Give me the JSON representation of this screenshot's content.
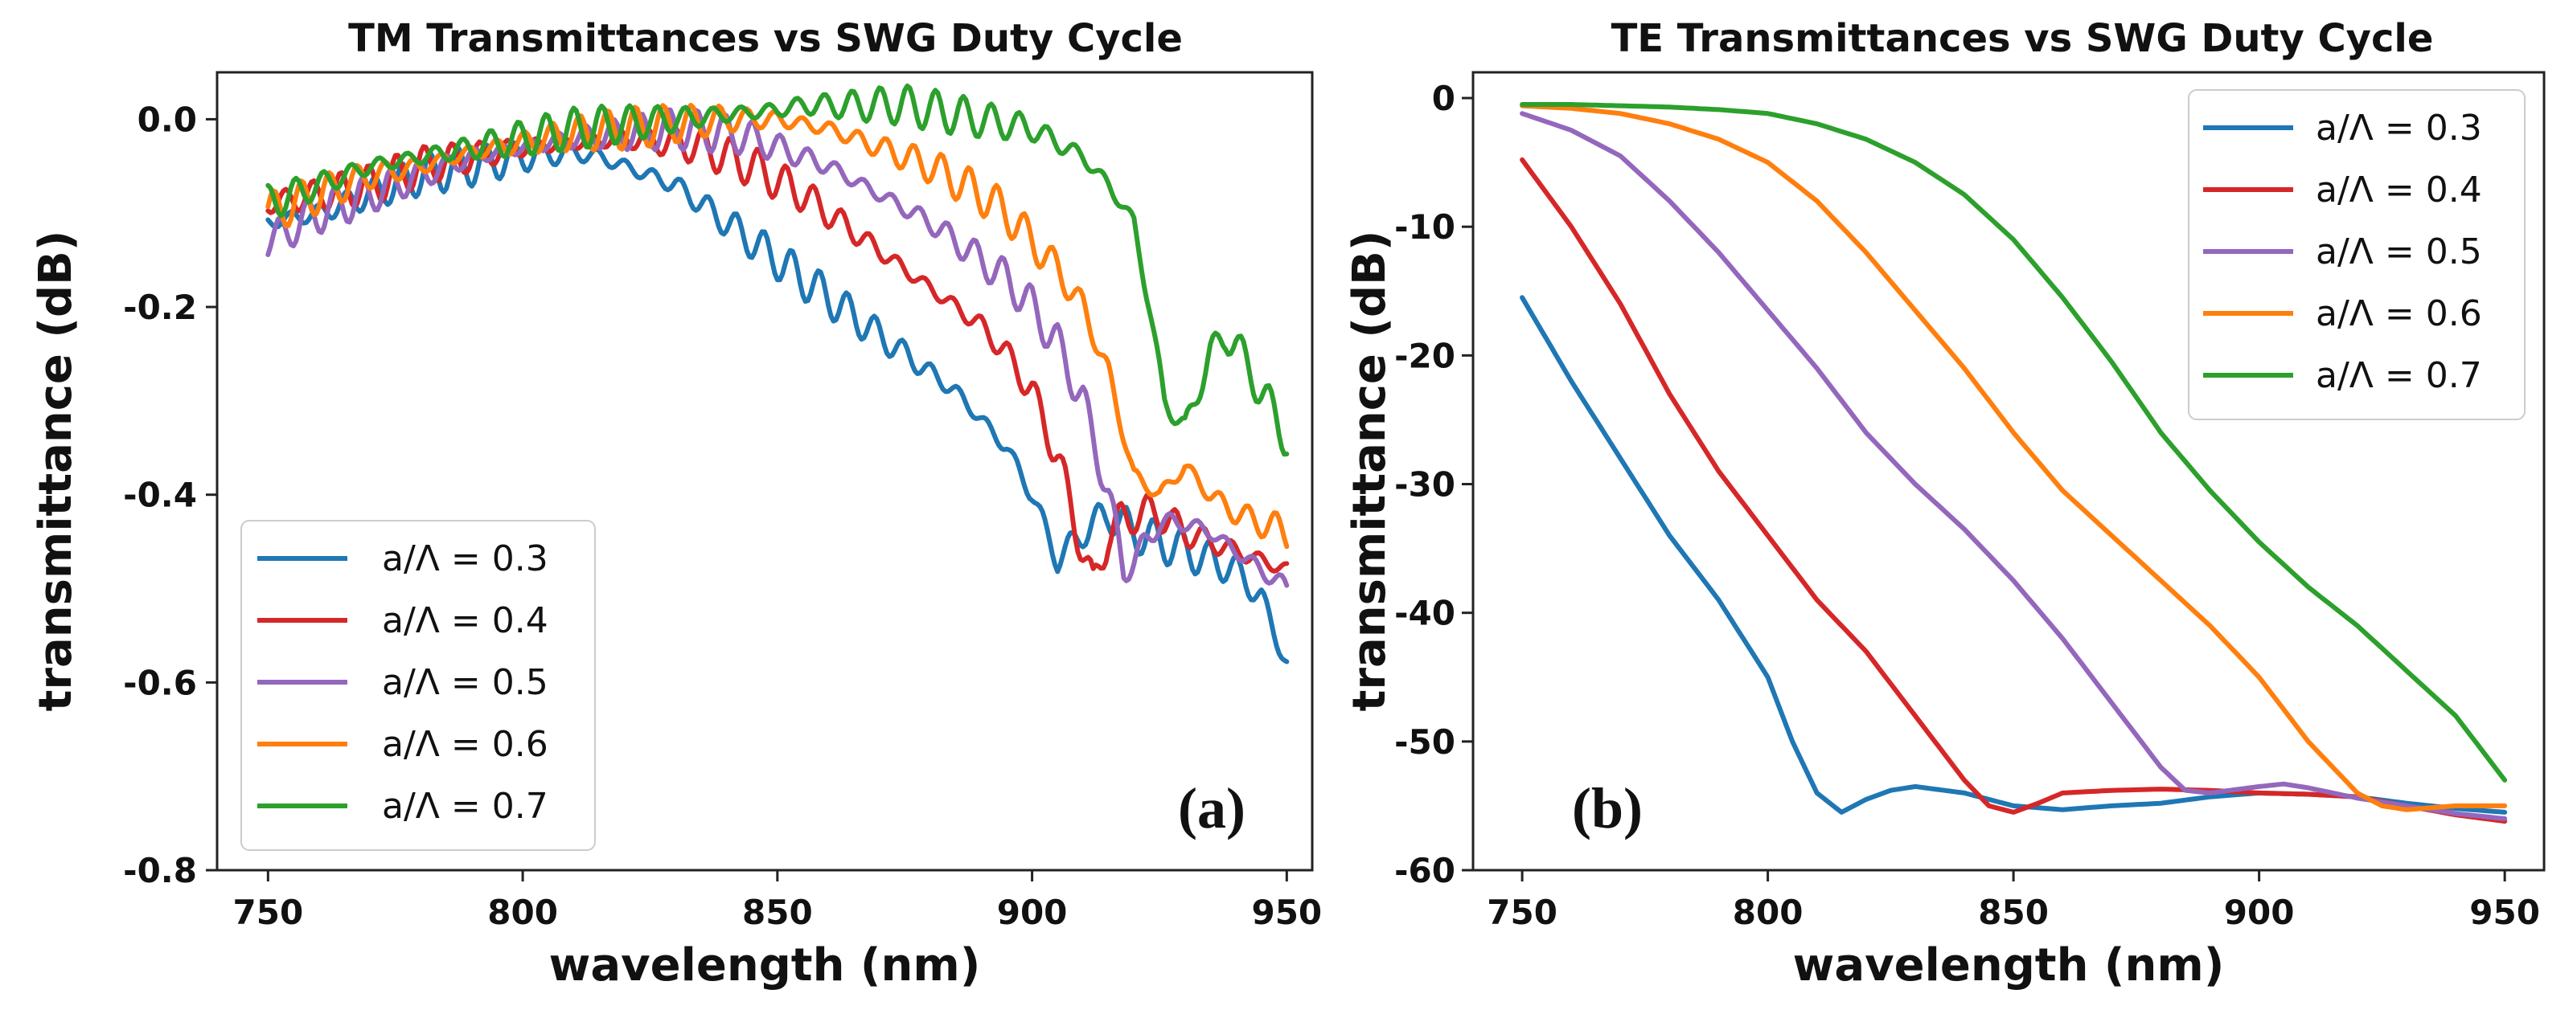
{
  "chart_data": [
    {
      "type": "line",
      "title": "TM Transmittances vs SWG Duty Cycle",
      "xlabel": "wavelength (nm)",
      "ylabel": "transmittance (dB)",
      "xlim": [
        740,
        955
      ],
      "ylim": [
        -0.8,
        0.05
      ],
      "xticks": [
        750,
        800,
        850,
        900,
        950
      ],
      "yticks": [
        0.0,
        -0.2,
        -0.4,
        -0.6,
        -0.8
      ],
      "xtick_labels": [
        "750",
        "800",
        "850",
        "900",
        "950"
      ],
      "ytick_labels": [
        "0.0",
        "-0.2",
        "-0.4",
        "-0.6",
        "-0.8"
      ],
      "legend_position": "lower-left",
      "panel_label": "(a)",
      "ripple": 0.022,
      "series": [
        {
          "name": "a/Λ = 0.3",
          "color": "#1f77b4",
          "x": [
            750,
            760,
            770,
            780,
            790,
            800,
            810,
            815,
            820,
            825,
            830,
            835,
            840,
            845,
            850,
            855,
            860,
            865,
            870,
            875,
            880,
            885,
            890,
            895,
            900,
            905,
            910,
            915,
            920,
            925,
            930,
            935,
            940,
            945,
            950
          ],
          "y": [
            -0.11,
            -0.1,
            -0.08,
            -0.06,
            -0.05,
            -0.04,
            -0.035,
            -0.04,
            -0.05,
            -0.06,
            -0.07,
            -0.09,
            -0.11,
            -0.13,
            -0.15,
            -0.17,
            -0.19,
            -0.21,
            -0.23,
            -0.25,
            -0.27,
            -0.29,
            -0.32,
            -0.35,
            -0.4,
            -0.47,
            -0.44,
            -0.42,
            -0.44,
            -0.45,
            -0.46,
            -0.47,
            -0.48,
            -0.51,
            -0.58
          ]
        },
        {
          "name": "a/Λ = 0.4",
          "color": "#d62728",
          "x": [
            750,
            760,
            770,
            780,
            790,
            800,
            810,
            820,
            830,
            835,
            840,
            845,
            850,
            855,
            860,
            865,
            870,
            875,
            880,
            885,
            890,
            895,
            900,
            905,
            910,
            912,
            915,
            920,
            925,
            930,
            935,
            940,
            945,
            950
          ],
          "y": [
            -0.09,
            -0.08,
            -0.07,
            -0.05,
            -0.04,
            -0.03,
            -0.025,
            -0.02,
            -0.025,
            -0.03,
            -0.04,
            -0.05,
            -0.065,
            -0.08,
            -0.1,
            -0.12,
            -0.14,
            -0.16,
            -0.18,
            -0.2,
            -0.22,
            -0.25,
            -0.29,
            -0.36,
            -0.46,
            -0.5,
            -0.44,
            -0.42,
            -0.42,
            -0.44,
            -0.45,
            -0.46,
            -0.47,
            -0.48
          ]
        },
        {
          "name": "a/Λ = 0.5",
          "color": "#9467bd",
          "x": [
            750,
            760,
            770,
            780,
            790,
            800,
            810,
            820,
            830,
            840,
            845,
            850,
            855,
            860,
            865,
            870,
            875,
            880,
            885,
            890,
            895,
            900,
            905,
            910,
            915,
            918,
            920,
            925,
            930,
            935,
            940,
            945,
            950
          ],
          "y": [
            -0.13,
            -0.1,
            -0.08,
            -0.06,
            -0.04,
            -0.03,
            -0.02,
            -0.015,
            -0.01,
            -0.015,
            -0.02,
            -0.03,
            -0.04,
            -0.05,
            -0.065,
            -0.08,
            -0.095,
            -0.11,
            -0.13,
            -0.15,
            -0.17,
            -0.2,
            -0.24,
            -0.3,
            -0.4,
            -0.48,
            -0.47,
            -0.43,
            -0.43,
            -0.44,
            -0.46,
            -0.48,
            -0.5
          ]
        },
        {
          "name": "a/Λ = 0.6",
          "color": "#ff7f0e",
          "x": [
            750,
            760,
            770,
            780,
            790,
            800,
            810,
            820,
            830,
            840,
            850,
            855,
            860,
            865,
            870,
            875,
            880,
            885,
            890,
            895,
            900,
            905,
            910,
            915,
            920,
            925,
            930,
            935,
            940,
            945,
            950
          ],
          "y": [
            -0.1,
            -0.08,
            -0.06,
            -0.05,
            -0.035,
            -0.025,
            -0.015,
            -0.01,
            -0.005,
            0.0,
            0.0,
            -0.005,
            -0.01,
            -0.02,
            -0.03,
            -0.04,
            -0.05,
            -0.065,
            -0.08,
            -0.1,
            -0.13,
            -0.16,
            -0.2,
            -0.27,
            -0.38,
            -0.4,
            -0.37,
            -0.4,
            -0.42,
            -0.43,
            -0.44
          ]
        },
        {
          "name": "a/Λ = 0.7",
          "color": "#2ca02c",
          "x": [
            750,
            760,
            770,
            780,
            790,
            800,
            810,
            820,
            830,
            840,
            850,
            855,
            860,
            865,
            870,
            875,
            880,
            885,
            890,
            895,
            900,
            905,
            910,
            915,
            920,
            923,
            926,
            930,
            935,
            938,
            940,
            945,
            950
          ],
          "y": [
            -0.09,
            -0.07,
            -0.05,
            -0.04,
            -0.03,
            -0.02,
            -0.01,
            -0.005,
            0.0,
            0.005,
            0.01,
            0.015,
            0.015,
            0.015,
            0.015,
            0.015,
            0.01,
            0.005,
            0.0,
            -0.005,
            -0.01,
            -0.025,
            -0.04,
            -0.07,
            -0.11,
            -0.2,
            -0.3,
            -0.33,
            -0.25,
            -0.23,
            -0.24,
            -0.29,
            -0.34
          ]
        }
      ]
    },
    {
      "type": "line",
      "title": "TE Transmittances vs SWG Duty Cycle",
      "xlabel": "wavelength (nm)",
      "ylabel": "transmittance (dB)",
      "xlim": [
        740,
        958
      ],
      "ylim": [
        -60,
        2
      ],
      "xticks": [
        750,
        800,
        850,
        900,
        950
      ],
      "yticks": [
        0,
        -10,
        -20,
        -30,
        -40,
        -50,
        -60
      ],
      "xtick_labels": [
        "750",
        "800",
        "850",
        "900",
        "950"
      ],
      "ytick_labels": [
        "0",
        "-10",
        "-20",
        "-30",
        "-40",
        "-50",
        "-60"
      ],
      "legend_position": "upper-right",
      "panel_label": "(b)",
      "ripple": 0,
      "series": [
        {
          "name": "a/Λ = 0.3",
          "color": "#1f77b4",
          "x": [
            750,
            760,
            770,
            780,
            790,
            800,
            805,
            810,
            815,
            820,
            825,
            830,
            840,
            850,
            860,
            870,
            880,
            890,
            900,
            910,
            920,
            930,
            940,
            950
          ],
          "y": [
            -15.5,
            -22,
            -28,
            -34,
            -39,
            -45,
            -50,
            -54,
            -55.5,
            -54.5,
            -53.8,
            -53.5,
            -54,
            -55,
            -55.3,
            -55,
            -54.8,
            -54.3,
            -54,
            -54.1,
            -54.3,
            -54.8,
            -55.2,
            -55.5
          ]
        },
        {
          "name": "a/Λ = 0.4",
          "color": "#d62728",
          "x": [
            750,
            760,
            770,
            780,
            790,
            800,
            810,
            820,
            830,
            840,
            845,
            850,
            855,
            860,
            870,
            880,
            890,
            900,
            910,
            920,
            930,
            940,
            950
          ],
          "y": [
            -4.8,
            -10,
            -16,
            -23,
            -29,
            -34,
            -39,
            -43,
            -48,
            -53,
            -55,
            -55.5,
            -54.8,
            -54,
            -53.8,
            -53.7,
            -53.8,
            -54,
            -54.1,
            -54.3,
            -55,
            -55.7,
            -56.2
          ]
        },
        {
          "name": "a/Λ = 0.5",
          "color": "#9467bd",
          "x": [
            750,
            760,
            770,
            780,
            790,
            800,
            810,
            820,
            830,
            840,
            850,
            860,
            870,
            880,
            885,
            890,
            900,
            905,
            910,
            920,
            930,
            940,
            950
          ],
          "y": [
            -1.2,
            -2.5,
            -4.5,
            -8,
            -12,
            -16.5,
            -21,
            -26,
            -30,
            -33.5,
            -37.5,
            -42,
            -47,
            -52,
            -53.8,
            -54,
            -53.5,
            -53.3,
            -53.6,
            -54.4,
            -55,
            -55.6,
            -56
          ]
        },
        {
          "name": "a/Λ = 0.6",
          "color": "#ff7f0e",
          "x": [
            750,
            760,
            770,
            780,
            790,
            800,
            810,
            820,
            830,
            840,
            850,
            860,
            870,
            880,
            890,
            900,
            910,
            920,
            925,
            930,
            940,
            950
          ],
          "y": [
            -0.6,
            -0.8,
            -1.2,
            -2,
            -3.2,
            -5,
            -8,
            -12,
            -16.5,
            -21,
            -26,
            -30.5,
            -34,
            -37.5,
            -41,
            -45,
            -50,
            -54,
            -55,
            -55.3,
            -55,
            -55
          ]
        },
        {
          "name": "a/Λ = 0.7",
          "color": "#2ca02c",
          "x": [
            750,
            760,
            770,
            780,
            790,
            800,
            810,
            820,
            830,
            840,
            850,
            860,
            870,
            880,
            890,
            900,
            910,
            920,
            930,
            940,
            945,
            950
          ],
          "y": [
            -0.5,
            -0.5,
            -0.6,
            -0.7,
            -0.9,
            -1.2,
            -2,
            -3.2,
            -5,
            -7.5,
            -11,
            -15.5,
            -20.5,
            -26,
            -30.5,
            -34.5,
            -38,
            -41,
            -44.5,
            -48,
            -50.5,
            -53
          ]
        }
      ]
    }
  ]
}
